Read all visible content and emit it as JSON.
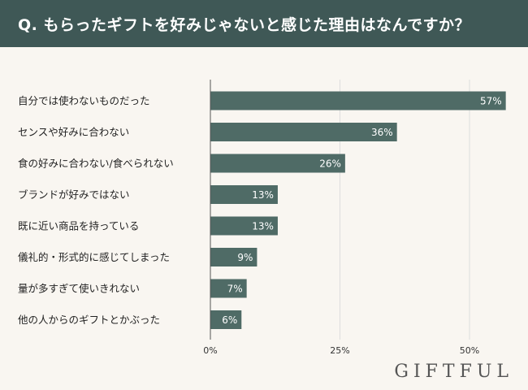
{
  "header": {
    "title": "Q. もらったギフトを好みじゃないと感じた理由はなんですか？"
  },
  "brand": {
    "logo_text": "GIFTFUL"
  },
  "colors": {
    "header_bg": "#3f5856",
    "bar": "#4f6b66",
    "background": "#f9f6f1",
    "gridline": "#dddddd"
  },
  "chart_data": {
    "type": "bar",
    "orientation": "horizontal",
    "title": "Q. もらったギフトを好みじゃないと感じた理由はなんですか？",
    "categories": [
      "自分では使わないものだった",
      "センスや好みに合わない",
      "食の好みに合わない/食べられない",
      "ブランドが好みではない",
      "既に近い商品を持っている",
      "儀礼的・形式的に感じてしまった",
      "量が多すぎて使いきれない",
      "他の人からのギフトとかぶった"
    ],
    "values": [
      57,
      36,
      26,
      13,
      13,
      9,
      7,
      6
    ],
    "value_labels": [
      "57%",
      "36%",
      "26%",
      "13%",
      "13%",
      "9%",
      "7%",
      "6%"
    ],
    "x_ticks": [
      0,
      25,
      50
    ],
    "x_tick_labels": [
      "0%",
      "25%",
      "50%"
    ],
    "xlim": [
      0,
      60
    ],
    "grid": true
  }
}
